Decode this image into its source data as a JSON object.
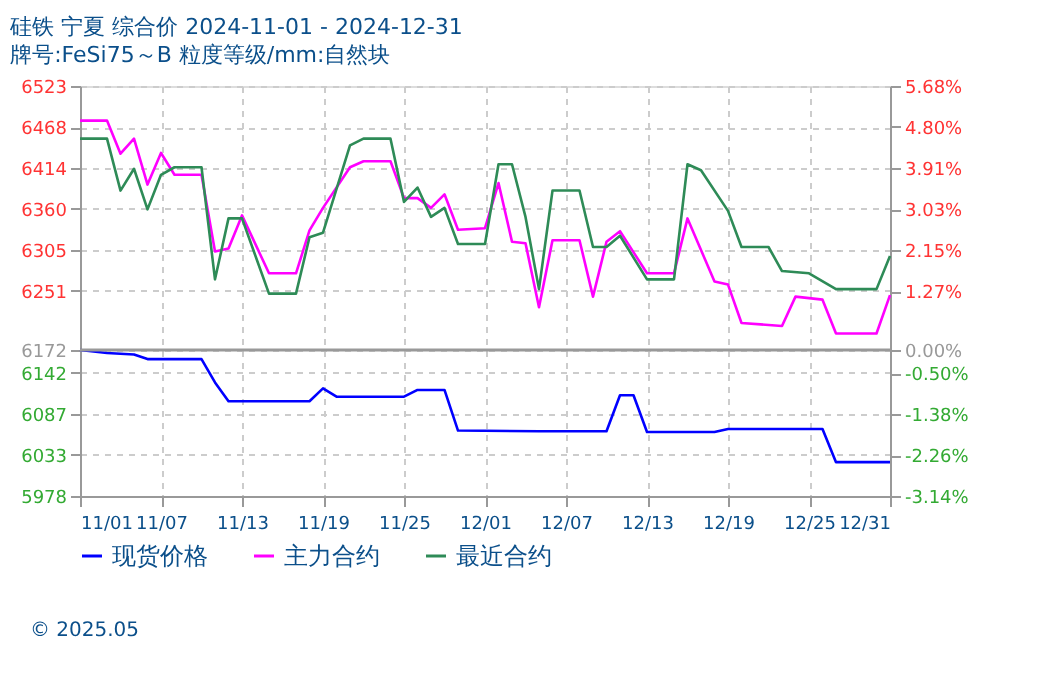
{
  "chart_data": {
    "type": "line",
    "title": "硅铁 宁夏 综合价 2024-11-01 - 2024-12-31",
    "subtitle": "牌号:FeSi75～B 粒度等级/mm:自然块",
    "xlim": [
      "2024-11-01",
      "2024-12-31"
    ],
    "xticks": [
      {
        "value": "2024-11-01",
        "label": "11/01"
      },
      {
        "value": "2024-11-07",
        "label": "11/07"
      },
      {
        "value": "2024-11-13",
        "label": "11/13"
      },
      {
        "value": "2024-11-19",
        "label": "11/19"
      },
      {
        "value": "2024-11-25",
        "label": "11/25"
      },
      {
        "value": "2024-12-01",
        "label": "12/01"
      },
      {
        "value": "2024-12-07",
        "label": "12/07"
      },
      {
        "value": "2024-12-13",
        "label": "12/13"
      },
      {
        "value": "2024-12-19",
        "label": "12/19"
      },
      {
        "value": "2024-12-25",
        "label": "12/25"
      },
      {
        "value": "2024-12-31",
        "label": "12/31"
      }
    ],
    "ylim": [
      5978,
      6523
    ],
    "yticks": [
      5978,
      6033,
      6087,
      6142,
      6172,
      6251,
      6305,
      6360,
      6414,
      6468,
      6523
    ],
    "y2lim": [
      -3.14,
      5.68
    ],
    "y2ticks": [
      {
        "value": -3.14,
        "label": "-3.14%"
      },
      {
        "value": -2.26,
        "label": "-2.26%"
      },
      {
        "value": -1.38,
        "label": "-1.38%"
      },
      {
        "value": -0.5,
        "label": "-0.50%"
      },
      {
        "value": 0,
        "label": "0.00%"
      },
      {
        "value": 1.27,
        "label": "1.27%"
      },
      {
        "value": 2.15,
        "label": "2.15%"
      },
      {
        "value": 3.03,
        "label": "3.03%"
      },
      {
        "value": 3.91,
        "label": "3.91%"
      },
      {
        "value": 4.8,
        "label": "4.80%"
      },
      {
        "value": 5.68,
        "label": "5.68%"
      }
    ],
    "ref_lines": [
      {
        "axis": "y2",
        "value": 0,
        "color": "#999999"
      }
    ],
    "grid": true,
    "legend": "bottom",
    "line_style": "solid",
    "marker": "none",
    "annotations": [
      "© 2025.05"
    ],
    "series": [
      {
        "name": "现货价格",
        "color": "#0000ff",
        "x": [
          "2024-11-01",
          "2024-11-03",
          "2024-11-05",
          "2024-11-06",
          "2024-11-10",
          "2024-11-11",
          "2024-11-12",
          "2024-11-18",
          "2024-11-19",
          "2024-11-20",
          "2024-11-25",
          "2024-11-26",
          "2024-11-28",
          "2024-11-29",
          "2024-12-05",
          "2024-12-10",
          "2024-12-11",
          "2024-12-12",
          "2024-12-13",
          "2024-12-18",
          "2024-12-19",
          "2024-12-26",
          "2024-12-27",
          "2024-12-31"
        ],
        "values": [
          6172,
          6168,
          6166,
          6160,
          6160,
          6129,
          6104,
          6104,
          6121,
          6110,
          6110,
          6119,
          6119,
          6065,
          6064,
          6064,
          6112,
          6112,
          6063,
          6063,
          6067,
          6067,
          6023,
          6023
        ]
      },
      {
        "name": "主力合约",
        "color": "#ff00ff",
        "x": [
          "2024-11-01",
          "2024-11-03",
          "2024-11-04",
          "2024-11-05",
          "2024-11-06",
          "2024-11-07",
          "2024-11-08",
          "2024-11-10",
          "2024-11-11",
          "2024-11-12",
          "2024-11-13",
          "2024-11-15",
          "2024-11-17",
          "2024-11-18",
          "2024-11-19",
          "2024-11-21",
          "2024-11-22",
          "2024-11-24",
          "2024-11-25",
          "2024-11-26",
          "2024-11-27",
          "2024-11-28",
          "2024-11-29",
          "2024-12-01",
          "2024-12-02",
          "2024-12-03",
          "2024-12-04",
          "2024-12-05",
          "2024-12-06",
          "2024-12-08",
          "2024-12-09",
          "2024-12-10",
          "2024-12-11",
          "2024-12-13",
          "2024-12-15",
          "2024-12-16",
          "2024-12-18",
          "2024-12-19",
          "2024-12-20",
          "2024-12-23",
          "2024-12-24",
          "2024-12-26",
          "2024-12-27",
          "2024-12-30",
          "2024-12-31"
        ],
        "values": [
          6477,
          6477,
          6433,
          6453,
          6392,
          6434,
          6405,
          6405,
          6303,
          6307,
          6351,
          6274,
          6274,
          6331,
          6361,
          6415,
          6423,
          6423,
          6374,
          6374,
          6361,
          6379,
          6332,
          6334,
          6394,
          6316,
          6314,
          6229,
          6318,
          6318,
          6243,
          6316,
          6330,
          6274,
          6274,
          6347,
          6263,
          6259,
          6208,
          6204,
          6243,
          6239,
          6194,
          6194,
          6245
        ]
      },
      {
        "name": "最近合约",
        "color": "#2e8b57",
        "x": [
          "2024-11-01",
          "2024-11-03",
          "2024-11-04",
          "2024-11-05",
          "2024-11-06",
          "2024-11-07",
          "2024-11-08",
          "2024-11-10",
          "2024-11-11",
          "2024-11-12",
          "2024-11-13",
          "2024-11-15",
          "2024-11-17",
          "2024-11-18",
          "2024-11-19",
          "2024-11-21",
          "2024-11-22",
          "2024-11-24",
          "2024-11-25",
          "2024-11-26",
          "2024-11-27",
          "2024-11-28",
          "2024-11-29",
          "2024-12-01",
          "2024-12-02",
          "2024-12-03",
          "2024-12-04",
          "2024-12-05",
          "2024-12-06",
          "2024-12-08",
          "2024-12-09",
          "2024-12-10",
          "2024-12-11",
          "2024-12-13",
          "2024-12-15",
          "2024-12-16",
          "2024-12-17",
          "2024-12-19",
          "2024-12-20",
          "2024-12-22",
          "2024-12-23",
          "2024-12-25",
          "2024-12-27",
          "2024-12-30",
          "2024-12-31"
        ],
        "values": [
          6453,
          6453,
          6384,
          6413,
          6359,
          6405,
          6415,
          6415,
          6266,
          6347,
          6347,
          6247,
          6247,
          6322,
          6328,
          6444,
          6453,
          6453,
          6369,
          6388,
          6349,
          6361,
          6313,
          6313,
          6419,
          6419,
          6349,
          6253,
          6384,
          6384,
          6309,
          6309,
          6324,
          6266,
          6266,
          6419,
          6411,
          6357,
          6309,
          6309,
          6277,
          6274,
          6253,
          6253,
          6297
        ]
      }
    ]
  }
}
